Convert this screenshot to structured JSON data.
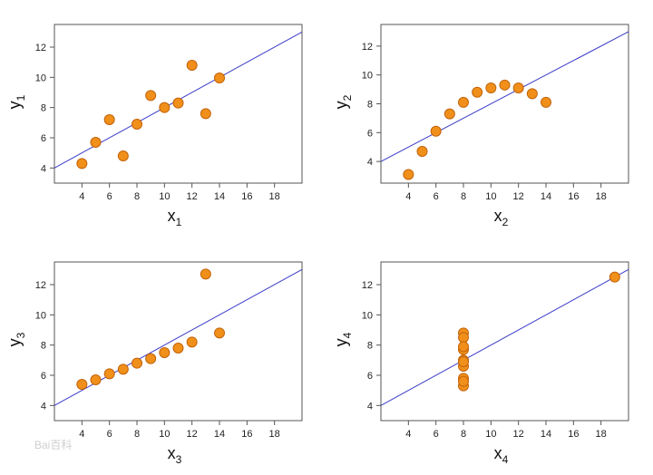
{
  "watermark": "Bai百科",
  "chart_data": [
    {
      "type": "scatter",
      "xlabel": "x",
      "xlabel_sub": "1",
      "ylabel": "y",
      "ylabel_sub": "1",
      "xlim": [
        2,
        20
      ],
      "ylim": [
        3,
        13.5
      ],
      "xticks": [
        "4",
        "6",
        "8",
        "10",
        "12",
        "14",
        "16",
        "18"
      ],
      "yticks": [
        "4",
        "6",
        "8",
        "10",
        "12"
      ],
      "points": [
        [
          4,
          4.3
        ],
        [
          5,
          5.7
        ],
        [
          6,
          7.2
        ],
        [
          7,
          4.8
        ],
        [
          8,
          6.9
        ],
        [
          9,
          8.8
        ],
        [
          10,
          8.0
        ],
        [
          11,
          8.3
        ],
        [
          12,
          10.8
        ],
        [
          13,
          7.6
        ],
        [
          14,
          9.96
        ]
      ],
      "line": {
        "intercept": 3.0,
        "slope": 0.5
      },
      "marker_color": "#f0901a",
      "line_color": "#3a3ac8"
    },
    {
      "type": "scatter",
      "xlabel": "x",
      "xlabel_sub": "2",
      "ylabel": "y",
      "ylabel_sub": "2",
      "xlim": [
        2,
        20
      ],
      "ylim": [
        2.5,
        13.5
      ],
      "xticks": [
        "4",
        "6",
        "8",
        "10",
        "12",
        "14",
        "16",
        "18"
      ],
      "yticks": [
        "4",
        "6",
        "8",
        "10",
        "12"
      ],
      "points": [
        [
          4,
          3.1
        ],
        [
          5,
          4.7
        ],
        [
          6,
          6.1
        ],
        [
          7,
          7.3
        ],
        [
          8,
          8.1
        ],
        [
          9,
          8.8
        ],
        [
          10,
          9.1
        ],
        [
          11,
          9.3
        ],
        [
          12,
          9.1
        ],
        [
          13,
          8.7
        ],
        [
          14,
          8.1
        ]
      ],
      "line": {
        "intercept": 3.0,
        "slope": 0.5
      },
      "marker_color": "#f0901a",
      "line_color": "#3a3ac8"
    },
    {
      "type": "scatter",
      "xlabel": "x",
      "xlabel_sub": "3",
      "ylabel": "y",
      "ylabel_sub": "3",
      "xlim": [
        2,
        20
      ],
      "ylim": [
        3,
        13.5
      ],
      "xticks": [
        "4",
        "6",
        "8",
        "10",
        "12",
        "14",
        "16",
        "18"
      ],
      "yticks": [
        "4",
        "6",
        "8",
        "10",
        "12"
      ],
      "points": [
        [
          4,
          5.4
        ],
        [
          5,
          5.7
        ],
        [
          6,
          6.1
        ],
        [
          7,
          6.4
        ],
        [
          8,
          6.8
        ],
        [
          9,
          7.1
        ],
        [
          10,
          7.5
        ],
        [
          11,
          7.8
        ],
        [
          12,
          8.2
        ],
        [
          13,
          12.7
        ],
        [
          14,
          8.8
        ]
      ],
      "line": {
        "intercept": 3.0,
        "slope": 0.5
      },
      "marker_color": "#f0901a",
      "line_color": "#3a3ac8"
    },
    {
      "type": "scatter",
      "xlabel": "x",
      "xlabel_sub": "4",
      "ylabel": "y",
      "ylabel_sub": "4",
      "xlim": [
        2,
        20
      ],
      "ylim": [
        3,
        13.5
      ],
      "xticks": [
        "4",
        "6",
        "8",
        "10",
        "12",
        "14",
        "16",
        "18"
      ],
      "yticks": [
        "4",
        "6",
        "8",
        "10",
        "12"
      ],
      "points": [
        [
          8,
          6.6
        ],
        [
          8,
          5.8
        ],
        [
          8,
          7.7
        ],
        [
          8,
          8.8
        ],
        [
          8,
          8.5
        ],
        [
          8,
          7.0
        ],
        [
          8,
          5.3
        ],
        [
          8,
          5.6
        ],
        [
          8,
          7.9
        ],
        [
          8,
          6.9
        ],
        [
          19,
          12.5
        ]
      ],
      "line": {
        "intercept": 3.0,
        "slope": 0.5
      },
      "marker_color": "#f0901a",
      "line_color": "#3a3ac8"
    }
  ]
}
